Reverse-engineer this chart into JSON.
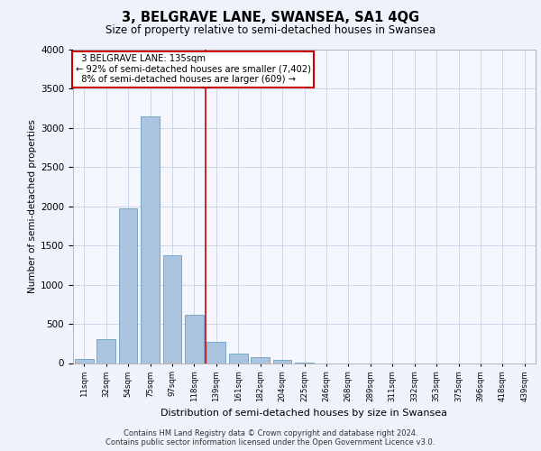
{
  "title": "3, BELGRAVE LANE, SWANSEA, SA1 4QG",
  "subtitle": "Size of property relative to semi-detached houses in Swansea",
  "xlabel": "Distribution of semi-detached houses by size in Swansea",
  "ylabel": "Number of semi-detached properties",
  "footer_line1": "Contains HM Land Registry data © Crown copyright and database right 2024.",
  "footer_line2": "Contains public sector information licensed under the Open Government Licence v3.0.",
  "categories": [
    "11sqm",
    "32sqm",
    "54sqm",
    "75sqm",
    "97sqm",
    "118sqm",
    "139sqm",
    "161sqm",
    "182sqm",
    "204sqm",
    "225sqm",
    "246sqm",
    "268sqm",
    "289sqm",
    "311sqm",
    "332sqm",
    "353sqm",
    "375sqm",
    "396sqm",
    "418sqm",
    "439sqm"
  ],
  "values": [
    50,
    300,
    1970,
    3150,
    1380,
    620,
    270,
    120,
    70,
    40,
    10,
    0,
    0,
    0,
    0,
    0,
    0,
    0,
    0,
    0,
    0
  ],
  "bar_color": "#aac4e0",
  "bar_edge_color": "#6a9ec0",
  "vline_color": "#cc0000",
  "annotation_box_color": "#cc0000",
  "property_label": "3 BELGRAVE LANE: 135sqm",
  "pct_smaller": 92,
  "count_smaller": 7402,
  "pct_larger": 8,
  "count_larger": 609,
  "ylim": [
    0,
    4000
  ],
  "yticks": [
    0,
    500,
    1000,
    1500,
    2000,
    2500,
    3000,
    3500,
    4000
  ],
  "bg_color": "#eef2fb",
  "plot_bg_color": "#f5f7ff",
  "grid_color": "#c8cfe8"
}
